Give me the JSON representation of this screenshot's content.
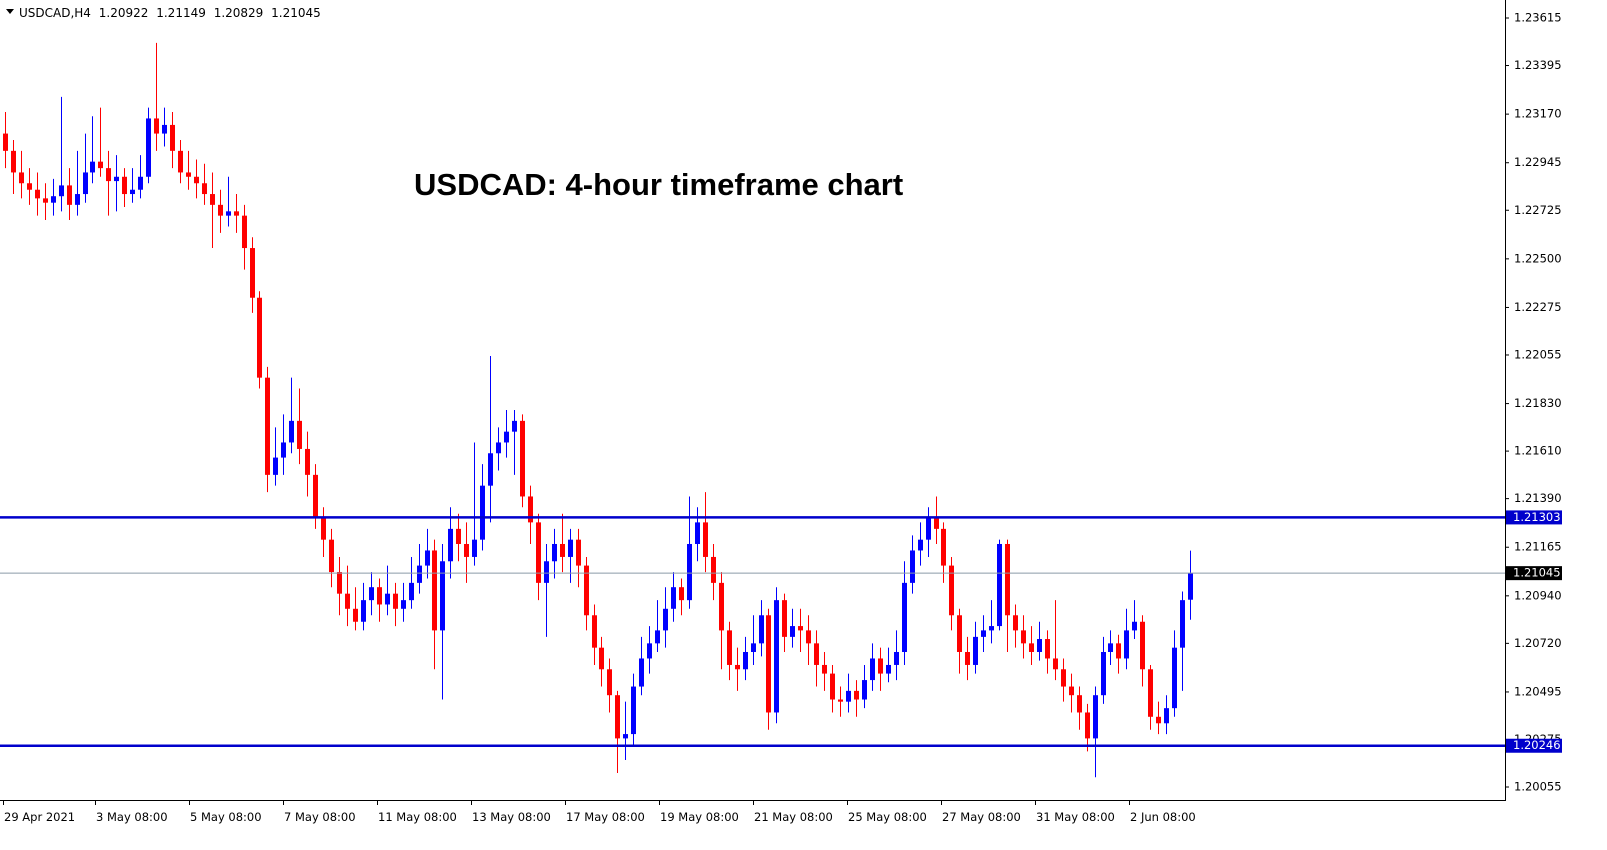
{
  "chart_data": {
    "type": "candlestick",
    "symbol": "USDCAD,H4",
    "title": "USDCAD: 4-hour timeframe chart",
    "up_color": "#0000ff",
    "down_color": "#ff0000",
    "level_color": "#0000cc",
    "levels": [
      1.21303,
      1.20246
    ],
    "ylim": [
      1.20055,
      1.23615
    ],
    "yticks": [
      1.23615,
      1.23395,
      {
        "value": 1.2317,
        "label": "1.23170"
      },
      1.22945,
      1.22725,
      {
        "value": 1.225,
        "label": "1.22500"
      },
      1.22275,
      1.22055,
      {
        "value": 1.2183,
        "label": "1.21830"
      },
      {
        "value": 1.2161,
        "label": "1.21610"
      },
      {
        "value": 1.2139,
        "label": "1.21390"
      },
      1.21165,
      {
        "value": 1.2094,
        "label": "1.20940"
      },
      {
        "value": 1.2072,
        "label": "1.20720"
      },
      1.20495,
      1.20275,
      1.20055
    ],
    "xticks": [
      "29 Apr 2021",
      "3 May 08:00",
      "5 May 08:00",
      "7 May 08:00",
      "11 May 08:00",
      "13 May 08:00",
      "17 May 08:00",
      "19 May 08:00",
      "21 May 08:00",
      "25 May 08:00",
      "27 May 08:00",
      "31 May 08:00",
      "2 Jun 08:00"
    ],
    "ohlc": [
      [
        1.2308,
        1.2318,
        1.2292,
        1.23
      ],
      [
        1.23,
        1.2305,
        1.228,
        1.229
      ],
      [
        1.229,
        1.23,
        1.2278,
        1.2285
      ],
      [
        1.2285,
        1.2292,
        1.2275,
        1.2282
      ],
      [
        1.2282,
        1.229,
        1.227,
        1.2278
      ],
      [
        1.2278,
        1.2285,
        1.2268,
        1.2276
      ],
      [
        1.2276,
        1.2287,
        1.227,
        1.2279
      ],
      [
        1.2279,
        1.2325,
        1.2272,
        1.2284
      ],
      [
        1.2284,
        1.2292,
        1.2268,
        1.2275
      ],
      [
        1.2275,
        1.23,
        1.227,
        1.228
      ],
      [
        1.228,
        1.2308,
        1.2276,
        1.229
      ],
      [
        1.229,
        1.2316,
        1.2285,
        1.2295
      ],
      [
        1.2295,
        1.232,
        1.2288,
        1.2292
      ],
      [
        1.2292,
        1.23,
        1.227,
        1.2286
      ],
      [
        1.2286,
        1.2298,
        1.2272,
        1.2288
      ],
      [
        1.2288,
        1.2292,
        1.2274,
        1.228
      ],
      [
        1.228,
        1.2292,
        1.2276,
        1.2282
      ],
      [
        1.2282,
        1.2298,
        1.2278,
        1.2288
      ],
      [
        1.2288,
        1.232,
        1.2285,
        1.2315
      ],
      [
        1.2315,
        1.235,
        1.23,
        1.2308
      ],
      [
        1.2308,
        1.232,
        1.2302,
        1.2312
      ],
      [
        1.2312,
        1.2318,
        1.2292,
        1.23
      ],
      [
        1.23,
        1.2305,
        1.2285,
        1.229
      ],
      [
        1.229,
        1.23,
        1.2282,
        1.2288
      ],
      [
        1.2288,
        1.2296,
        1.2278,
        1.2285
      ],
      [
        1.2285,
        1.2294,
        1.2275,
        1.228
      ],
      [
        1.228,
        1.229,
        1.2255,
        1.2275
      ],
      [
        1.2275,
        1.2282,
        1.2262,
        1.227
      ],
      [
        1.227,
        1.2288,
        1.2265,
        1.2272
      ],
      [
        1.2272,
        1.228,
        1.2262,
        1.227
      ],
      [
        1.227,
        1.2275,
        1.2245,
        1.2255
      ],
      [
        1.2255,
        1.226,
        1.2225,
        1.2232
      ],
      [
        1.2232,
        1.2235,
        1.219,
        1.2195
      ],
      [
        1.2195,
        1.22,
        1.2142,
        1.215
      ],
      [
        1.215,
        1.2172,
        1.2145,
        1.2158
      ],
      [
        1.2158,
        1.2178,
        1.215,
        1.2165
      ],
      [
        1.2165,
        1.2195,
        1.216,
        1.2175
      ],
      [
        1.2175,
        1.219,
        1.2155,
        1.2162
      ],
      [
        1.2162,
        1.217,
        1.214,
        1.215
      ],
      [
        1.215,
        1.2155,
        1.2125,
        1.213
      ],
      [
        1.213,
        1.2135,
        1.2112,
        1.212
      ],
      [
        1.212,
        1.2125,
        1.2098,
        1.2105
      ],
      [
        1.2105,
        1.2112,
        1.2085,
        1.2095
      ],
      [
        1.2095,
        1.2108,
        1.208,
        1.2088
      ],
      [
        1.2088,
        1.2098,
        1.2078,
        1.2082
      ],
      [
        1.2082,
        1.21,
        1.2078,
        1.2092
      ],
      [
        1.2092,
        1.2105,
        1.2085,
        1.2098
      ],
      [
        1.2098,
        1.2102,
        1.2082,
        1.209
      ],
      [
        1.209,
        1.2108,
        1.2085,
        1.2095
      ],
      [
        1.2095,
        1.21,
        1.208,
        1.2088
      ],
      [
        1.2088,
        1.21,
        1.2082,
        1.2092
      ],
      [
        1.2092,
        1.2112,
        1.2088,
        1.21
      ],
      [
        1.21,
        1.2118,
        1.2095,
        1.2108
      ],
      [
        1.2108,
        1.2125,
        1.2102,
        1.2115
      ],
      [
        1.2115,
        1.212,
        1.206,
        1.2078
      ],
      [
        1.2078,
        1.2118,
        1.2046,
        1.211
      ],
      [
        1.211,
        1.2135,
        1.2102,
        1.2125
      ],
      [
        1.2125,
        1.2132,
        1.211,
        1.2118
      ],
      [
        1.2118,
        1.2128,
        1.21,
        1.2112
      ],
      [
        1.2112,
        1.2165,
        1.2108,
        1.212
      ],
      [
        1.212,
        1.2155,
        1.2115,
        1.2145
      ],
      [
        1.2145,
        1.2205,
        1.2128,
        1.216
      ],
      [
        1.216,
        1.2172,
        1.2152,
        1.2165
      ],
      [
        1.2165,
        1.218,
        1.2158,
        1.217
      ],
      [
        1.217,
        1.218,
        1.215,
        1.2175
      ],
      [
        1.2175,
        1.2178,
        1.2135,
        1.214
      ],
      [
        1.214,
        1.2145,
        1.2118,
        1.2128
      ],
      [
        1.2128,
        1.2132,
        1.2092,
        1.21
      ],
      [
        1.21,
        1.2118,
        1.2075,
        1.211
      ],
      [
        1.211,
        1.2125,
        1.2102,
        1.2118
      ],
      [
        1.2118,
        1.2132,
        1.2105,
        1.2112
      ],
      [
        1.2112,
        1.2125,
        1.21,
        1.212
      ],
      [
        1.212,
        1.2125,
        1.2098,
        1.2108
      ],
      [
        1.2108,
        1.2112,
        1.2078,
        1.2085
      ],
      [
        1.2085,
        1.209,
        1.2062,
        1.207
      ],
      [
        1.207,
        1.2075,
        1.2052,
        1.206
      ],
      [
        1.206,
        1.2065,
        1.204,
        1.2048
      ],
      [
        1.2048,
        1.205,
        1.2012,
        1.2028
      ],
      [
        1.2028,
        1.2045,
        1.2018,
        1.203
      ],
      [
        1.203,
        1.2058,
        1.2025,
        1.2052
      ],
      [
        1.2052,
        1.2075,
        1.2048,
        1.2065
      ],
      [
        1.2065,
        1.208,
        1.2058,
        1.2072
      ],
      [
        1.2072,
        1.2092,
        1.2068,
        1.2078
      ],
      [
        1.2078,
        1.2098,
        1.207,
        1.2088
      ],
      [
        1.2088,
        1.2105,
        1.2082,
        1.2098
      ],
      [
        1.2098,
        1.2102,
        1.2085,
        1.2092
      ],
      [
        1.2092,
        1.214,
        1.2088,
        1.2118
      ],
      [
        1.2118,
        1.2135,
        1.211,
        1.2128
      ],
      [
        1.2128,
        1.2142,
        1.2105,
        1.2112
      ],
      [
        1.2112,
        1.2118,
        1.2092,
        1.21
      ],
      [
        1.21,
        1.2105,
        1.206,
        1.2078
      ],
      [
        1.2078,
        1.2082,
        1.2055,
        1.2062
      ],
      [
        1.2062,
        1.207,
        1.205,
        1.206
      ],
      [
        1.206,
        1.2075,
        1.2055,
        1.2068
      ],
      [
        1.2068,
        1.2085,
        1.2062,
        1.2072
      ],
      [
        1.2072,
        1.2092,
        1.2066,
        1.2085
      ],
      [
        1.2085,
        1.2088,
        1.2032,
        1.204
      ],
      [
        1.204,
        1.2098,
        1.2035,
        1.2092
      ],
      [
        1.2092,
        1.2095,
        1.2068,
        1.2075
      ],
      [
        1.2075,
        1.2088,
        1.207,
        1.208
      ],
      [
        1.208,
        1.2088,
        1.2068,
        1.2078
      ],
      [
        1.2078,
        1.2085,
        1.2062,
        1.2072
      ],
      [
        1.2072,
        1.2078,
        1.2052,
        1.2062
      ],
      [
        1.2062,
        1.2068,
        1.205,
        1.2058
      ],
      [
        1.2058,
        1.2062,
        1.204,
        1.2046
      ],
      [
        1.2046,
        1.2052,
        1.2038,
        1.2045
      ],
      [
        1.2045,
        1.2058,
        1.204,
        1.205
      ],
      [
        1.205,
        1.2055,
        1.2038,
        1.2046
      ],
      [
        1.2046,
        1.2062,
        1.2042,
        1.2055
      ],
      [
        1.2055,
        1.2072,
        1.205,
        1.2065
      ],
      [
        1.2065,
        1.207,
        1.205,
        1.2058
      ],
      [
        1.2058,
        1.207,
        1.2054,
        1.2062
      ],
      [
        1.2062,
        1.2078,
        1.2055,
        1.2068
      ],
      [
        1.2068,
        1.211,
        1.2062,
        1.21
      ],
      [
        1.21,
        1.2122,
        1.2095,
        1.2115
      ],
      [
        1.2115,
        1.2128,
        1.2108,
        1.212
      ],
      [
        1.212,
        1.2135,
        1.2112,
        1.213
      ],
      [
        1.213,
        1.214,
        1.2118,
        1.2125
      ],
      [
        1.2125,
        1.2128,
        1.21,
        1.2108
      ],
      [
        1.2108,
        1.2112,
        1.2078,
        1.2085
      ],
      [
        1.2085,
        1.2088,
        1.2058,
        1.2068
      ],
      [
        1.2068,
        1.2075,
        1.2055,
        1.2062
      ],
      [
        1.2062,
        1.2082,
        1.2058,
        1.2075
      ],
      [
        1.2075,
        1.2085,
        1.2068,
        1.2078
      ],
      [
        1.2078,
        1.2092,
        1.2072,
        1.208
      ],
      [
        1.208,
        1.212,
        1.2078,
        1.2118
      ],
      [
        1.2118,
        1.212,
        1.2068,
        1.2085
      ],
      [
        1.2085,
        1.209,
        1.207,
        1.2078
      ],
      [
        1.2078,
        1.2085,
        1.2065,
        1.2072
      ],
      [
        1.2072,
        1.208,
        1.2062,
        1.2068
      ],
      [
        1.2068,
        1.2082,
        1.2064,
        1.2074
      ],
      [
        1.2074,
        1.2078,
        1.2058,
        1.2065
      ],
      [
        1.2065,
        1.2092,
        1.2055,
        1.206
      ],
      [
        1.206,
        1.2065,
        1.2045,
        1.2052
      ],
      [
        1.2052,
        1.2058,
        1.204,
        1.2048
      ],
      [
        1.2048,
        1.2052,
        1.2032,
        1.204
      ],
      [
        1.204,
        1.2044,
        1.2022,
        1.2028
      ],
      [
        1.2028,
        1.2052,
        1.201,
        1.2048
      ],
      [
        1.2048,
        1.2075,
        1.2044,
        1.2068
      ],
      [
        1.2068,
        1.2078,
        1.2062,
        1.2072
      ],
      [
        1.2072,
        1.2076,
        1.2058,
        1.2065
      ],
      [
        1.2065,
        1.2088,
        1.206,
        1.2078
      ],
      [
        1.2078,
        1.2092,
        1.2074,
        1.2082
      ],
      [
        1.2082,
        1.2085,
        1.2052,
        1.206
      ],
      [
        1.206,
        1.2062,
        1.2032,
        1.2038
      ],
      [
        1.2038,
        1.2045,
        1.203,
        1.2035
      ],
      [
        1.2035,
        1.2048,
        1.203,
        1.2042
      ],
      [
        1.2042,
        1.2078,
        1.2038,
        1.207
      ],
      [
        1.207,
        1.2096,
        1.205,
        1.2092
      ],
      [
        1.20922,
        1.21149,
        1.20829,
        1.21045
      ]
    ]
  }
}
